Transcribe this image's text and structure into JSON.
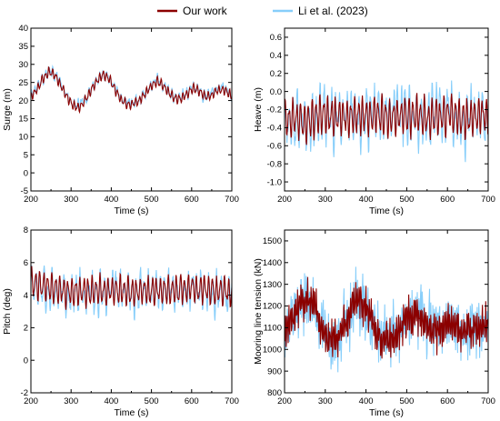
{
  "legend": {
    "items": [
      {
        "label": "Our work",
        "color": "#8b0000"
      },
      {
        "label": "Li et al. (2023)",
        "color": "#87cefa"
      }
    ]
  },
  "chart_data": [
    {
      "id": "surge",
      "type": "line",
      "xlabel": "Time (s)",
      "ylabel": "Surge (m)",
      "xlim": [
        200,
        700
      ],
      "ylim": [
        -5,
        40
      ],
      "xticks": [
        200,
        300,
        400,
        500,
        600,
        700
      ],
      "yticks": [
        -5,
        0,
        5,
        10,
        15,
        20,
        25,
        30,
        35,
        40
      ],
      "yfmt": 0,
      "signal": {
        "x": [
          200,
          215,
          230,
          245,
          260,
          275,
          290,
          305,
          320,
          335,
          350,
          365,
          380,
          395,
          410,
          425,
          440,
          455,
          470,
          485,
          500,
          515,
          530,
          545,
          560,
          575,
          590,
          605,
          620,
          635,
          650,
          665,
          680,
          695,
          700
        ],
        "y": [
          21,
          23,
          26,
          28,
          27,
          24,
          21,
          18.5,
          18,
          20,
          23,
          25.5,
          27,
          26,
          23,
          20,
          19,
          19,
          20,
          22,
          24,
          25.5,
          24,
          22,
          20.5,
          20.5,
          22,
          23.5,
          22.5,
          21,
          21.5,
          23,
          23,
          21.5,
          21
        ],
        "osc_amp": 1.0,
        "osc_period": 9,
        "osc2_amp": 0.4,
        "osc2_period": 5.3
      },
      "series": [
        {
          "name": "Li et al. (2023)",
          "color": "#87cefa",
          "offset": 0.3,
          "noise": 0.7,
          "seed": 7,
          "scale": 1.1
        },
        {
          "name": "Our work",
          "color": "#8b0000",
          "offset": 0,
          "noise": 0.2,
          "seed": 3,
          "scale": 1.0
        }
      ]
    },
    {
      "id": "heave",
      "type": "line",
      "xlabel": "Time (s)",
      "ylabel": "Heave (m)",
      "xlim": [
        200,
        700
      ],
      "ylim": [
        -1.1,
        0.7
      ],
      "xticks": [
        200,
        300,
        400,
        500,
        600,
        700
      ],
      "yticks": [
        -1.0,
        -0.8,
        -0.6,
        -0.4,
        -0.2,
        0.0,
        0.2,
        0.4,
        0.6
      ],
      "yfmt": 1,
      "signal": {
        "x": [
          200,
          250,
          300,
          350,
          400,
          450,
          500,
          550,
          600,
          650,
          700
        ],
        "y": [
          -0.3,
          -0.32,
          -0.25,
          -0.28,
          -0.26,
          -0.28,
          -0.27,
          -0.3,
          -0.25,
          -0.3,
          -0.28
        ],
        "osc_amp": 0.17,
        "osc_period": 9.5,
        "osc2_amp": 0.06,
        "osc2_period": 6.1
      },
      "series": [
        {
          "name": "Li et al. (2023)",
          "color": "#87cefa",
          "offset": 0.0,
          "noise": 0.12,
          "seed": 11,
          "scale": 1.25
        },
        {
          "name": "Our work",
          "color": "#8b0000",
          "offset": 0,
          "noise": 0.04,
          "seed": 5,
          "scale": 1.0
        }
      ]
    },
    {
      "id": "pitch",
      "type": "line",
      "xlabel": "Time (s)",
      "ylabel": "Pitch (deg)",
      "xlim": [
        200,
        700
      ],
      "ylim": [
        -2,
        8
      ],
      "xticks": [
        200,
        300,
        400,
        500,
        600,
        700
      ],
      "yticks": [
        -2,
        0,
        2,
        4,
        6,
        8
      ],
      "yfmt": 0,
      "signal": {
        "x": [
          200,
          250,
          300,
          350,
          400,
          450,
          500,
          550,
          600,
          650,
          700
        ],
        "y": [
          4.8,
          4.4,
          4.2,
          4.3,
          4.3,
          4.2,
          4.3,
          4.3,
          4.4,
          4.3,
          4.2
        ],
        "osc_amp": 0.7,
        "osc_period": 10,
        "osc2_amp": 0.25,
        "osc2_period": 6.3
      },
      "series": [
        {
          "name": "Li et al. (2023)",
          "color": "#87cefa",
          "offset": -0.1,
          "noise": 0.45,
          "seed": 17,
          "scale": 1.2
        },
        {
          "name": "Our work",
          "color": "#8b0000",
          "offset": 0,
          "noise": 0.15,
          "seed": 9,
          "scale": 1.0
        }
      ]
    },
    {
      "id": "tension",
      "type": "line",
      "xlabel": "Time (s)",
      "ylabel": "Mooring line tension (kN)",
      "xlim": [
        200,
        700
      ],
      "ylim": [
        800,
        1550
      ],
      "xticks": [
        200,
        300,
        400,
        500,
        600,
        700
      ],
      "yticks": [
        800,
        900,
        1000,
        1100,
        1200,
        1300,
        1400,
        1500
      ],
      "yfmt": 0,
      "signal": {
        "x": [
          200,
          215,
          230,
          245,
          260,
          275,
          290,
          305,
          320,
          335,
          350,
          365,
          380,
          395,
          410,
          425,
          440,
          455,
          470,
          485,
          500,
          515,
          530,
          545,
          560,
          575,
          590,
          605,
          620,
          635,
          650,
          665,
          680,
          695,
          700
        ],
        "y": [
          1100,
          1130,
          1180,
          1230,
          1220,
          1180,
          1110,
          1060,
          1040,
          1070,
          1130,
          1190,
          1230,
          1210,
          1140,
          1080,
          1050,
          1040,
          1060,
          1100,
          1140,
          1160,
          1150,
          1120,
          1090,
          1080,
          1100,
          1120,
          1120,
          1100,
          1090,
          1100,
          1110,
          1110,
          1100
        ],
        "osc_amp": 55,
        "osc_period": 4.2,
        "osc2_amp": 25,
        "osc2_period": 2.7
      },
      "series": [
        {
          "name": "Li et al. (2023)",
          "color": "#87cefa",
          "offset": 0,
          "noise": 55,
          "seed": 21,
          "scale": 1.4
        },
        {
          "name": "Our work",
          "color": "#8b0000",
          "offset": 0,
          "noise": 30,
          "seed": 13,
          "scale": 1.0
        }
      ]
    }
  ]
}
